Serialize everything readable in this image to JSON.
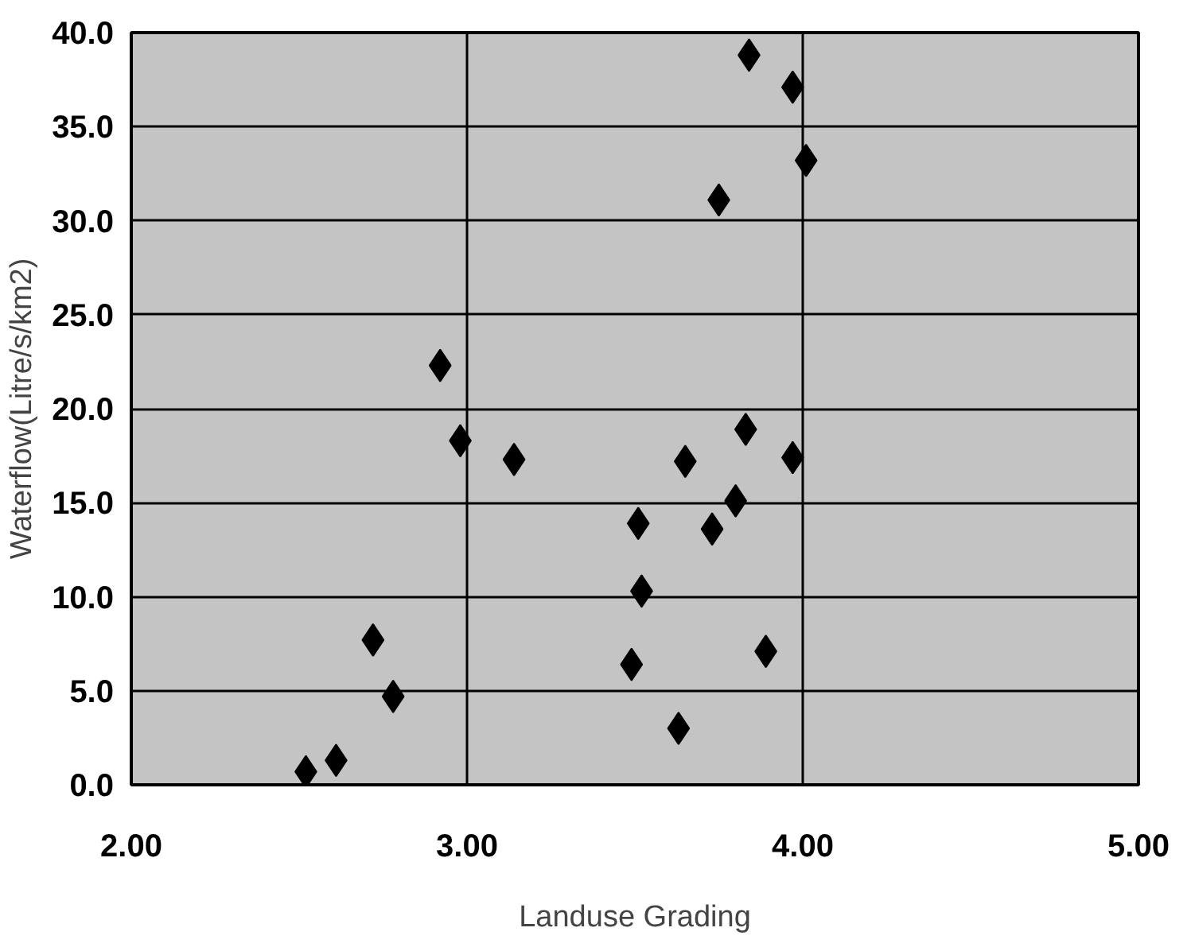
{
  "chart_data": {
    "type": "scatter",
    "xlabel": "Landuse Grading",
    "ylabel": "Waterflow(Litre/s/km2)",
    "x": [
      3.84,
      3.97,
      4.01,
      3.75,
      2.92,
      2.98,
      3.14,
      3.65,
      3.83,
      3.97,
      3.8,
      3.51,
      3.73,
      3.52,
      2.72,
      3.89,
      3.49,
      2.78,
      3.63,
      2.61,
      2.52
    ],
    "values": [
      38.8,
      37.1,
      33.2,
      31.1,
      22.3,
      18.3,
      17.3,
      17.2,
      18.9,
      17.4,
      15.1,
      13.9,
      13.6,
      10.3,
      7.7,
      7.1,
      6.4,
      4.7,
      3.0,
      1.3,
      0.7
    ],
    "color": "#000000",
    "marker": "diamond",
    "xlim": [
      2,
      5
    ],
    "ylim": [
      0,
      40
    ],
    "xticks": [
      {
        "value": 2,
        "label": "2.00"
      },
      {
        "value": 3,
        "label": "3.00"
      },
      {
        "value": 4,
        "label": "4.00"
      },
      {
        "value": 5,
        "label": "5.00"
      }
    ],
    "yticks": [
      {
        "value": 0,
        "label": "0.0"
      },
      {
        "value": 5,
        "label": "5.0"
      },
      {
        "value": 10,
        "label": "10.0"
      },
      {
        "value": 15,
        "label": "15.0"
      },
      {
        "value": 20,
        "label": "20.0"
      },
      {
        "value": 25,
        "label": "25.0"
      },
      {
        "value": 30,
        "label": "30.0"
      },
      {
        "value": 35,
        "label": "35.0"
      },
      {
        "value": 40,
        "label": "40.0"
      }
    ],
    "grid": true
  }
}
